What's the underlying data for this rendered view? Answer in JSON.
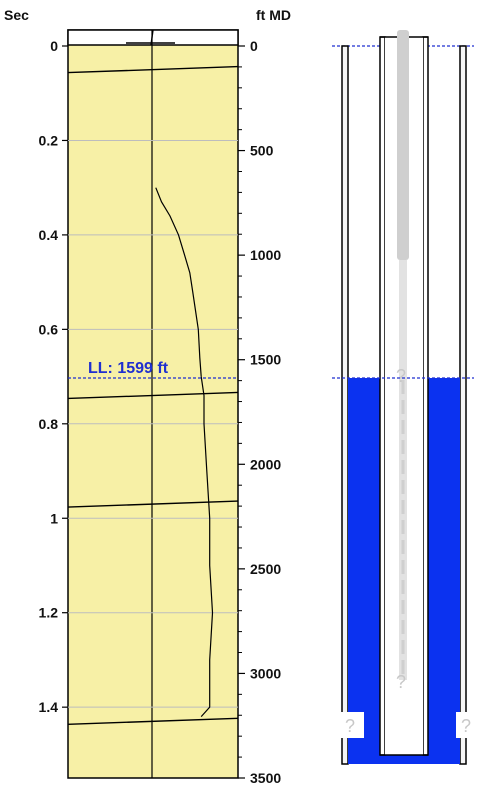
{
  "chart_data": {
    "type": "line",
    "title": "",
    "left_axis": {
      "label": "Sec",
      "range": [
        0,
        1.55
      ],
      "ticks": [
        "0",
        "0.2",
        "0.4",
        "0.6",
        "0.8",
        "1",
        "1.2",
        "1.4"
      ]
    },
    "right_axis": {
      "label": "ft MD",
      "range": [
        0,
        3500
      ],
      "ticks": [
        "0",
        "500",
        "1000",
        "1500",
        "2000",
        "2500",
        "3000",
        "3500"
      ]
    },
    "grid": true,
    "liquid_level": {
      "label": "LL: 1599 ft",
      "depth_ft": 1599,
      "time_sec": 0.7
    },
    "series": [
      {
        "points": [
          [
            0.3,
            0.62
          ],
          [
            0.33,
            0.66
          ],
          [
            0.36,
            0.72
          ],
          [
            0.4,
            0.78
          ],
          [
            0.44,
            0.82
          ],
          [
            0.48,
            0.86
          ],
          [
            0.52,
            0.88
          ],
          [
            0.56,
            0.9
          ],
          [
            0.6,
            0.92
          ],
          [
            0.66,
            0.93
          ],
          [
            0.7,
            0.94
          ]
        ]
      },
      {
        "points": [
          [
            0.7,
            0.94
          ],
          [
            0.74,
            0.96
          ],
          [
            0.8,
            0.96
          ],
          [
            0.9,
            0.98
          ],
          [
            1.0,
            1.0
          ],
          [
            1.1,
            1.0
          ],
          [
            1.2,
            1.02
          ],
          [
            1.3,
            1.0
          ],
          [
            1.4,
            1.0
          ],
          [
            1.42,
            0.94
          ]
        ]
      }
    ],
    "reflections": [
      {
        "time_sec": 0.05
      },
      {
        "time_sec": 0.74
      },
      {
        "time_sec": 0.97
      },
      {
        "time_sec": 1.43
      }
    ],
    "colors": {
      "panel": "#f7f0a6",
      "liquid": "#0b32f0",
      "tubing": "#cfcfcf",
      "level_line": "#1f2fd0",
      "grid": "#bdbdbd"
    },
    "wellbore": {
      "unknown_markers": [
        "?",
        "?",
        "?",
        "?"
      ]
    }
  }
}
